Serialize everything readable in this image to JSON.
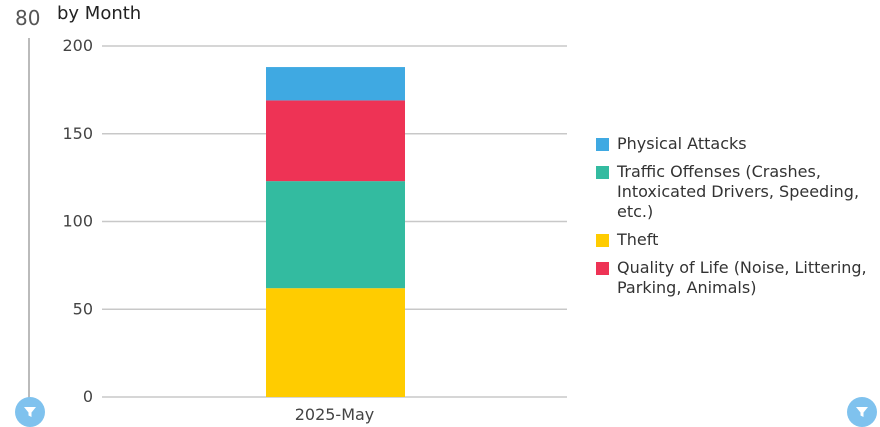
{
  "side_panel": {
    "value": "80"
  },
  "chart_data": {
    "type": "bar",
    "stacked": true,
    "title": "by Month",
    "categories": [
      "2025-May"
    ],
    "yticks": [
      "0",
      "50",
      "100",
      "150",
      "200"
    ],
    "ylim": [
      0,
      200
    ],
    "grid": true,
    "legend_position": "right",
    "series": [
      {
        "name": "Theft",
        "values": [
          62
        ],
        "color": "#ffcc00"
      },
      {
        "name": "Traffic Offenses (Crashes, Intoxicated Drivers, Speeding, etc.)",
        "values": [
          61
        ],
        "color": "#33bba0"
      },
      {
        "name": "Quality of Life (Noise, Littering, Parking, Animals)",
        "values": [
          46
        ],
        "color": "#ee3355"
      },
      {
        "name": "Physical Attacks",
        "values": [
          19
        ],
        "color": "#3fa9e2"
      }
    ],
    "legend_order": [
      "Physical Attacks",
      "Traffic Offenses (Crashes, Intoxicated Drivers, Speeding, etc.)",
      "Theft",
      "Quality of Life (Noise, Littering, Parking, Animals)"
    ]
  },
  "icons": {
    "filter_left": "filter-icon",
    "filter_right": "filter-icon"
  },
  "colors": {
    "filter_button": "#7fc2ee",
    "axis_line": "#bbbbbb"
  }
}
